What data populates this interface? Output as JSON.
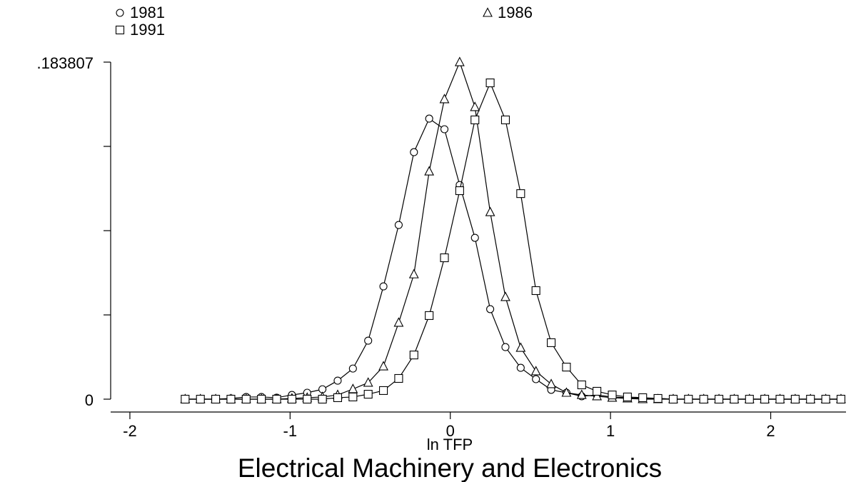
{
  "chart_data": {
    "type": "line",
    "title": "Electrical Machinery and Electronics",
    "x_label": "ln TFP",
    "x": [
      -1.655,
      -1.5598,
      -1.4646,
      -1.3694,
      -1.2742,
      -1.179,
      -1.0838,
      -0.9886,
      -0.8934,
      -0.7982,
      -0.703,
      -0.6078,
      -0.5126,
      -0.4174,
      -0.3222,
      -0.227,
      -0.1318,
      -0.0366,
      0.0586,
      0.1538,
      0.249,
      0.3442,
      0.4394,
      0.5346,
      0.6298,
      0.725,
      0.8202,
      0.9154,
      1.0106,
      1.1058,
      1.201,
      1.2962,
      1.3914,
      1.4866,
      1.5818,
      1.677,
      1.7722,
      1.8674,
      1.9626,
      2.0578,
      2.153,
      2.2482,
      2.3434,
      2.4386
    ],
    "series": [
      {
        "name": "1981",
        "marker": "circle",
        "color": "#000000",
        "values": [
          0,
          0,
          0,
          0.0004,
          0.0012,
          0.0012,
          0.0008,
          0.0023,
          0.0035,
          0.0054,
          0.0101,
          0.0167,
          0.0319,
          0.0615,
          0.095,
          0.1347,
          0.153,
          0.1472,
          0.1168,
          0.088,
          0.0491,
          0.0284,
          0.0171,
          0.0109,
          0.0051,
          0.0035,
          0.0016,
          0.0023,
          0.0012,
          0.0008,
          0.0004,
          0.0004,
          0,
          0,
          0,
          0,
          0,
          0,
          0,
          0,
          0,
          0,
          0,
          0
        ]
      },
      {
        "name": "1986",
        "marker": "triangle",
        "color": "#000000",
        "values": [
          0,
          0,
          0,
          0,
          0,
          0,
          0,
          0.0004,
          0.0008,
          0.0012,
          0.0023,
          0.0055,
          0.009,
          0.0179,
          0.0417,
          0.0681,
          0.1242,
          0.1636,
          0.1838,
          0.1593,
          0.102,
          0.0557,
          0.028,
          0.0152,
          0.0082,
          0.0035,
          0.0023,
          0.0016,
          0.0008,
          0.0004,
          0,
          0,
          0,
          0,
          0,
          0,
          0,
          0,
          0,
          0,
          0,
          0,
          0,
          0
        ]
      },
      {
        "name": "1991",
        "marker": "square",
        "color": "#000000",
        "values": [
          0,
          0,
          0,
          0,
          0,
          0,
          0,
          0,
          0,
          0,
          0.0008,
          0.0012,
          0.0027,
          0.0047,
          0.0113,
          0.0241,
          0.0456,
          0.0771,
          0.1137,
          0.1523,
          0.1725,
          0.1523,
          0.1121,
          0.0592,
          0.0308,
          0.0175,
          0.0078,
          0.0043,
          0.0023,
          0.0012,
          0.0008,
          0.0004,
          0,
          0,
          0,
          0,
          0,
          0,
          0,
          0,
          0,
          0,
          0,
          0
        ]
      }
    ],
    "xlim": [
      -2.12,
      2.47
    ],
    "ylim": [
      0,
      0.183807
    ],
    "xticks": [
      -2,
      -1,
      0,
      1,
      2
    ],
    "yticks": [
      0,
      {
        "value": 0.183807,
        "label": ".183807"
      }
    ],
    "yminor_ticks": [
      0.045952,
      0.091904,
      0.137855
    ]
  }
}
